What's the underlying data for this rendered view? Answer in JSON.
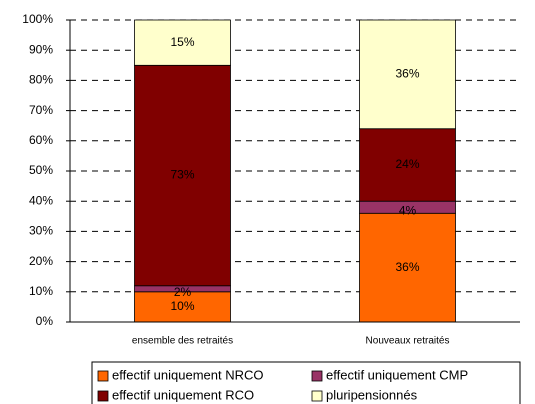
{
  "chart_data": {
    "type": "stacked_bar",
    "categories": [
      "ensemble des retraités",
      "Nouveaux retraités"
    ],
    "series": [
      {
        "name": "effectif uniquement NRCO",
        "color": "#ff6600",
        "values": [
          10,
          36
        ],
        "value_labels": [
          "10%",
          "36%"
        ]
      },
      {
        "name": "effectif uniquement CMP",
        "color": "#993366",
        "values": [
          2,
          4
        ],
        "value_labels": [
          "2%",
          "4%"
        ]
      },
      {
        "name": "effectif uniquement RCO",
        "color": "#800000",
        "values": [
          73,
          24
        ],
        "value_labels": [
          "73%",
          "24%"
        ]
      },
      {
        "name": "pluripensionnés",
        "color": "#ffffcc",
        "values": [
          15,
          36
        ],
        "value_labels": [
          "15%",
          "36%"
        ]
      }
    ],
    "ylim": [
      0,
      100
    ],
    "yticks": [
      {
        "value": 0,
        "label": "0%"
      },
      {
        "value": 10,
        "label": "10%"
      },
      {
        "value": 20,
        "label": "20%"
      },
      {
        "value": 30,
        "label": "30%"
      },
      {
        "value": 40,
        "label": "40%"
      },
      {
        "value": 50,
        "label": "50%"
      },
      {
        "value": 60,
        "label": "60%"
      },
      {
        "value": 70,
        "label": "70%"
      },
      {
        "value": 80,
        "label": "80%"
      },
      {
        "value": 90,
        "label": "90%"
      },
      {
        "value": 100,
        "label": "100%"
      }
    ],
    "grid": true
  }
}
